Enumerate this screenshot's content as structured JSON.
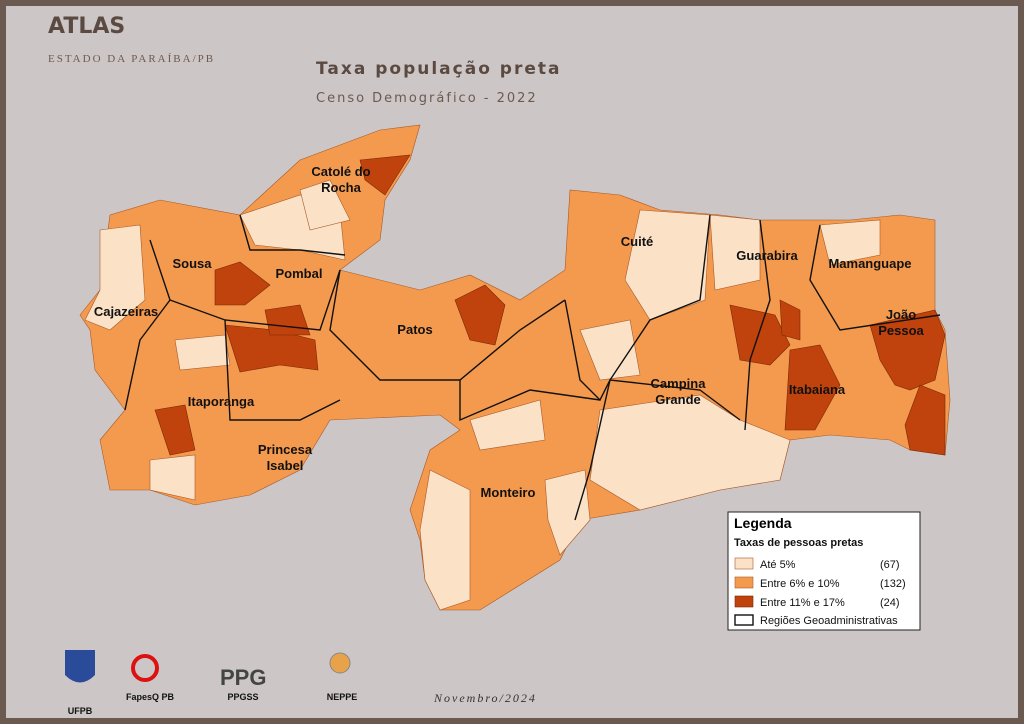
{
  "header": {
    "brand": "ATLAS",
    "subtitle": "ESTADO DA PARAÍBA/PB"
  },
  "title": "Taxa população preta",
  "subtitle": "Censo Demográfico - 2022",
  "regions": [
    {
      "lines": [
        "Catolé do",
        "Rocha"
      ]
    },
    {
      "lines": [
        "Sousa"
      ]
    },
    {
      "lines": [
        "Pombal"
      ]
    },
    {
      "lines": [
        "Cajazeiras"
      ]
    },
    {
      "lines": [
        "Patos"
      ]
    },
    {
      "lines": [
        "Itaporanga"
      ]
    },
    {
      "lines": [
        "Princesa",
        "Isabel"
      ]
    },
    {
      "lines": [
        "Cuité"
      ]
    },
    {
      "lines": [
        "Guarabira"
      ]
    },
    {
      "lines": [
        "Mamanguape"
      ]
    },
    {
      "lines": [
        "João",
        "Pessoa"
      ]
    },
    {
      "lines": [
        "Campina",
        "Grande"
      ]
    },
    {
      "lines": [
        "Itabaiana"
      ]
    },
    {
      "lines": [
        "Monteiro"
      ]
    }
  ],
  "legend": {
    "title": "Legenda",
    "subtitle": "Taxas de pessoas pretas",
    "items": [
      {
        "label": "Até 5%",
        "count": "(67)"
      },
      {
        "label": "Entre 6% e 10%",
        "count": "(132)"
      },
      {
        "label": "Entre 11% e 17%",
        "count": "(24)"
      }
    ],
    "boundary": "Regiões Geoadministrativas"
  },
  "footer": {
    "date": "Novembro/2024",
    "logos": [
      "UFPB",
      "FapesQ PB",
      "PPGSS",
      "NEPPE"
    ]
  }
}
